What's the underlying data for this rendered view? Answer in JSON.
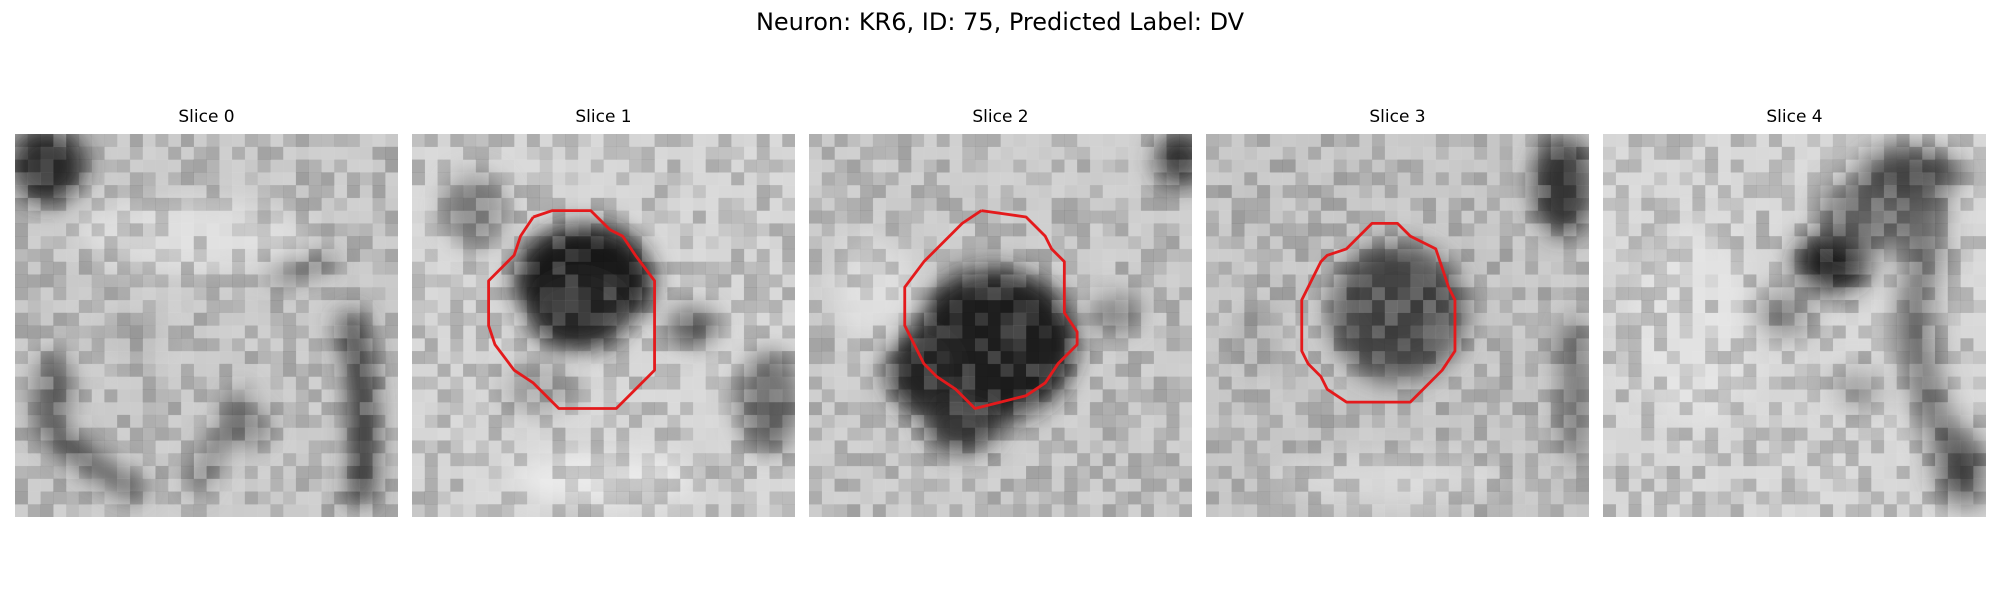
{
  "figure": {
    "title": "Neuron: KR6, ID: 75, Predicted Label: DV"
  },
  "panels": [
    {
      "title": "Slice 0",
      "has_contour": false
    },
    {
      "title": "Slice 1",
      "has_contour": true
    },
    {
      "title": "Slice 2",
      "has_contour": true
    },
    {
      "title": "Slice 3",
      "has_contour": true
    },
    {
      "title": "Slice 4",
      "has_contour": false
    }
  ],
  "colors": {
    "contour": "#e41a1c",
    "colormap": "grayscale"
  }
}
